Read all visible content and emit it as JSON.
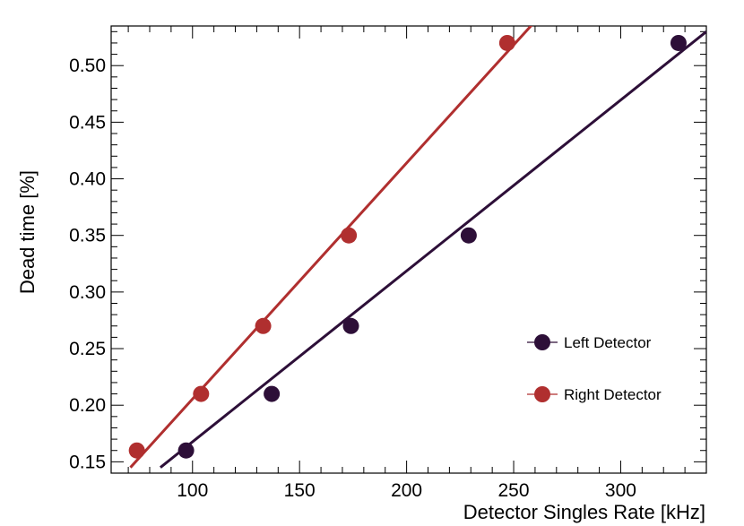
{
  "chart_data": {
    "type": "scatter",
    "title": "",
    "xlabel": "Detector Singles Rate [kHz]",
    "ylabel": "Dead time [%]",
    "xlim": [
      62,
      340
    ],
    "ylim": [
      0.14,
      0.535
    ],
    "x_ticks": [
      100,
      150,
      200,
      250,
      300
    ],
    "x_tick_labels": [
      "100",
      "150",
      "200",
      "250",
      "300"
    ],
    "y_ticks": [
      0.15,
      0.2,
      0.25,
      0.3,
      0.35,
      0.4,
      0.45,
      0.5
    ],
    "y_tick_labels": [
      "0.15",
      "0.20",
      "0.25",
      "0.30",
      "0.35",
      "0.40",
      "0.45",
      "0.50"
    ],
    "grid": false,
    "legend_position": "right",
    "series": [
      {
        "name": "Left Detector",
        "color": "#2d0f38",
        "x": [
          97,
          137,
          174,
          229,
          327
        ],
        "y": [
          0.16,
          0.21,
          0.27,
          0.35,
          0.52
        ],
        "fit": {
          "x": [
            85,
            340
          ],
          "y": [
            0.145,
            0.53
          ]
        }
      },
      {
        "name": "Right Detector",
        "color": "#b02f2f",
        "x": [
          74,
          104,
          133,
          173,
          247
        ],
        "y": [
          0.16,
          0.21,
          0.27,
          0.35,
          0.52
        ],
        "fit": {
          "x": [
            71,
            259
          ],
          "y": [
            0.145,
            0.537
          ]
        }
      }
    ]
  }
}
